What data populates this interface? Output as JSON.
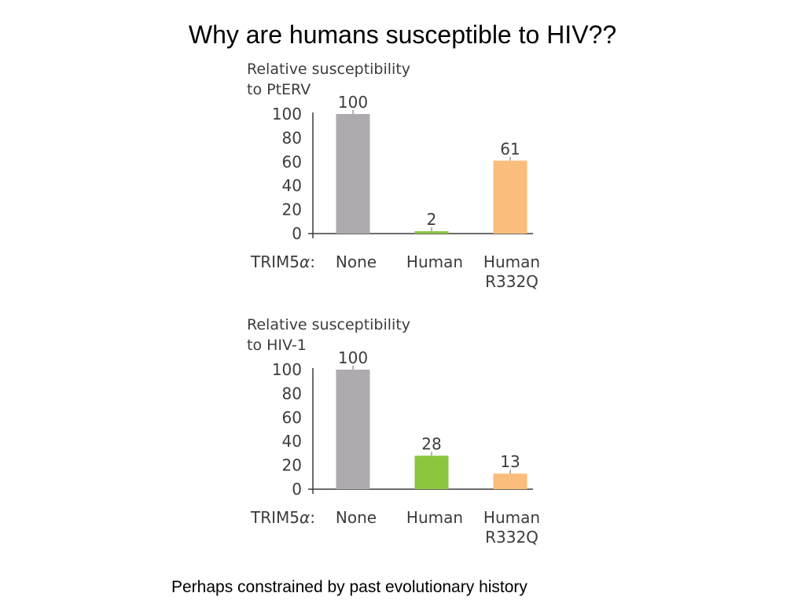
{
  "slide": {
    "title": "Why are humans susceptible to HIV??",
    "footer": "Perhaps constrained by past evolutionary history"
  },
  "chart_data": [
    {
      "type": "bar",
      "ylabel_lines": [
        "Relative susceptibility",
        "to PtERV"
      ],
      "xlabel": "TRIM5α:",
      "xlabel_prefix": "TRIM5",
      "xlabel_greek": "α",
      "categories": [
        [
          "None"
        ],
        [
          "Human"
        ],
        [
          "Human",
          "R332Q"
        ]
      ],
      "values": [
        100,
        2,
        61
      ],
      "data_labels": [
        "100",
        "2",
        "61"
      ],
      "colors": [
        "#adaab0",
        "#8cc63f",
        "#fbbd7b"
      ],
      "yticks": [
        "0",
        "20",
        "40",
        "60",
        "80",
        "100"
      ],
      "ylim": [
        0,
        100
      ],
      "grid": false
    },
    {
      "type": "bar",
      "ylabel_lines": [
        "Relative susceptibility",
        "to HIV-1"
      ],
      "xlabel": "TRIM5α:",
      "xlabel_prefix": "TRIM5",
      "xlabel_greek": "α",
      "categories": [
        [
          "None"
        ],
        [
          "Human"
        ],
        [
          "Human",
          "R332Q"
        ]
      ],
      "values": [
        100,
        28,
        13
      ],
      "data_labels": [
        "100",
        "28",
        "13"
      ],
      "colors": [
        "#adaab0",
        "#8cc63f",
        "#fbbd7b"
      ],
      "yticks": [
        "0",
        "20",
        "40",
        "60",
        "80",
        "100"
      ],
      "ylim": [
        0,
        100
      ],
      "grid": false
    }
  ]
}
